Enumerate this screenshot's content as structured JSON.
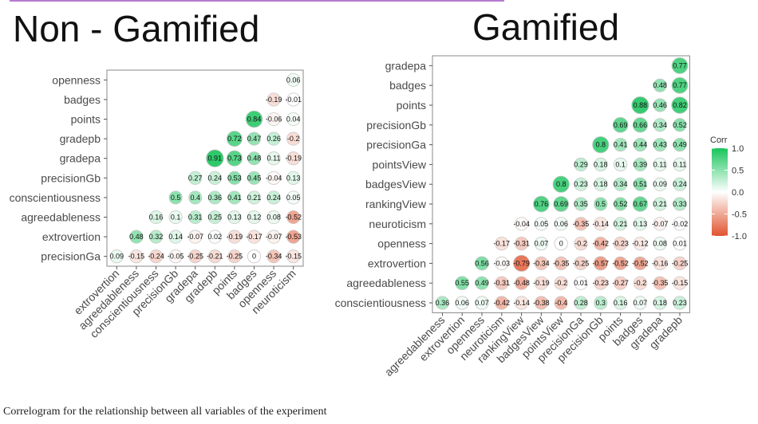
{
  "caption": "Correlogram for the relationship between all variables of the experiment",
  "legend": {
    "title": "Corr",
    "ticks": [
      "1.0",
      "0.5",
      "0.0",
      "-0.5",
      "-1.0"
    ],
    "colors": {
      "positive": "#19c45c",
      "neutral": "#ffffff",
      "negative": "#e0532e"
    }
  },
  "chart_data": [
    {
      "type": "heatmap",
      "title": "Non - Gamified",
      "rows": [
        "openness",
        "badges",
        "points",
        "gradepb",
        "gradepa",
        "precisionGb",
        "conscientiousness",
        "agreedableness",
        "extrovertion",
        "precisionGa"
      ],
      "columns": [
        "extrovertion",
        "agreedableness",
        "conscientiousness",
        "precisionGb",
        "gradepa",
        "gradepb",
        "points",
        "badges",
        "openness",
        "neuroticism"
      ],
      "values": [
        [
          null,
          null,
          null,
          null,
          null,
          null,
          null,
          null,
          null,
          0.06
        ],
        [
          null,
          null,
          null,
          null,
          null,
          null,
          null,
          null,
          -0.19,
          -0.01
        ],
        [
          null,
          null,
          null,
          null,
          null,
          null,
          null,
          0.84,
          -0.06,
          0.04
        ],
        [
          null,
          null,
          null,
          null,
          null,
          null,
          0.72,
          0.47,
          0.26,
          -0.2
        ],
        [
          null,
          null,
          null,
          null,
          null,
          0.91,
          0.73,
          0.48,
          0.11,
          -0.19
        ],
        [
          null,
          null,
          null,
          null,
          0.27,
          0.24,
          0.53,
          0.45,
          -0.04,
          0.13
        ],
        [
          null,
          null,
          null,
          0.5,
          0.4,
          0.36,
          0.41,
          0.21,
          0.24,
          0.05
        ],
        [
          null,
          null,
          0.16,
          0.1,
          0.31,
          0.25,
          0.13,
          0.12,
          0.08,
          -0.52
        ],
        [
          null,
          0.48,
          0.32,
          0.14,
          -0.07,
          0.02,
          -0.19,
          -0.17,
          -0.07,
          -0.53
        ],
        [
          0.09,
          -0.15,
          -0.24,
          -0.05,
          -0.25,
          -0.21,
          -0.25,
          0,
          -0.34,
          -0.15
        ]
      ],
      "value_labels": [
        [
          null,
          null,
          null,
          null,
          null,
          null,
          null,
          null,
          null,
          "0.06"
        ],
        [
          null,
          null,
          null,
          null,
          null,
          null,
          null,
          null,
          "-0.19",
          "-0.01"
        ],
        [
          null,
          null,
          null,
          null,
          null,
          null,
          null,
          "0.84",
          "-0.06",
          "0.04"
        ],
        [
          null,
          null,
          null,
          null,
          null,
          null,
          "0.72",
          "0.47",
          "0.26",
          "-0.2"
        ],
        [
          null,
          null,
          null,
          null,
          null,
          "0.91",
          "0.73",
          "0.48",
          "0.11",
          "-0.19"
        ],
        [
          null,
          null,
          null,
          null,
          "0.27",
          "0.24",
          "0.53",
          "0.45",
          "-0.04",
          "0.13"
        ],
        [
          null,
          null,
          null,
          "0.5",
          "0.4",
          "0.36",
          "0.41",
          "0.21",
          "0.24",
          "0.05"
        ],
        [
          null,
          null,
          "0.16",
          "0.1",
          "0.31",
          "0.25",
          "0.13",
          "0.12",
          "0.08",
          "-0.52"
        ],
        [
          null,
          "0.48",
          "0.32",
          "0.14",
          "-0.07",
          "0.02",
          "-0.19",
          "-0.17",
          "-0.07",
          "-0.53"
        ],
        [
          "0.09",
          "-0.15",
          "-0.24",
          "-0.05",
          "-0.25",
          "-0.21",
          "-0.25",
          "0",
          "-0.34",
          "-0.15"
        ]
      ]
    },
    {
      "type": "heatmap",
      "title": "Gamified",
      "rows": [
        "gradepa",
        "badges",
        "points",
        "precisionGb",
        "precisionGa",
        "pointsView",
        "badgesView",
        "rankingView",
        "neuroticism",
        "openness",
        "extrovertion",
        "agreedableness",
        "conscientiousness"
      ],
      "columns": [
        "agreedableness",
        "extrovertion",
        "openness",
        "neuroticism",
        "rankingView",
        "badgesView",
        "pointsView",
        "precisionGa",
        "precisionGb",
        "points",
        "badges",
        "gradepa",
        "gradepb"
      ],
      "values": [
        [
          null,
          null,
          null,
          null,
          null,
          null,
          null,
          null,
          null,
          null,
          null,
          null,
          0.77
        ],
        [
          null,
          null,
          null,
          null,
          null,
          null,
          null,
          null,
          null,
          null,
          null,
          0.48,
          0.77
        ],
        [
          null,
          null,
          null,
          null,
          null,
          null,
          null,
          null,
          null,
          null,
          0.88,
          0.46,
          0.82
        ],
        [
          null,
          null,
          null,
          null,
          null,
          null,
          null,
          null,
          null,
          0.69,
          0.66,
          0.34,
          0.52
        ],
        [
          null,
          null,
          null,
          null,
          null,
          null,
          null,
          null,
          0.8,
          0.41,
          0.44,
          0.43,
          0.49
        ],
        [
          null,
          null,
          null,
          null,
          null,
          null,
          null,
          0.29,
          0.18,
          0.1,
          0.39,
          0.11,
          0.11
        ],
        [
          null,
          null,
          null,
          null,
          null,
          null,
          0.8,
          0.23,
          0.18,
          0.34,
          0.51,
          0.09,
          0.24
        ],
        [
          null,
          null,
          null,
          null,
          null,
          0.76,
          0.69,
          0.35,
          0.5,
          0.52,
          0.67,
          0.21,
          0.33
        ],
        [
          null,
          null,
          null,
          null,
          -0.04,
          0.05,
          0.06,
          -0.35,
          -0.14,
          0.21,
          0.13,
          -0.07,
          -0.02
        ],
        [
          null,
          null,
          null,
          -0.17,
          -0.31,
          0.07,
          0,
          -0.2,
          -0.42,
          -0.23,
          -0.12,
          0.08,
          0.01
        ],
        [
          null,
          null,
          0.56,
          -0.03,
          -0.79,
          -0.34,
          -0.35,
          -0.25,
          -0.57,
          -0.52,
          -0.52,
          -0.16,
          -0.25
        ],
        [
          null,
          0.55,
          0.49,
          -0.31,
          -0.48,
          -0.19,
          -0.2,
          0.01,
          -0.23,
          -0.27,
          -0.2,
          -0.35,
          -0.15
        ],
        [
          0.36,
          0.06,
          0.07,
          -0.42,
          -0.14,
          -0.38,
          -0.4,
          0.28,
          0.3,
          0.16,
          0.07,
          0.18,
          0.23
        ]
      ],
      "value_labels": [
        [
          null,
          null,
          null,
          null,
          null,
          null,
          null,
          null,
          null,
          null,
          null,
          null,
          "0.77"
        ],
        [
          null,
          null,
          null,
          null,
          null,
          null,
          null,
          null,
          null,
          null,
          null,
          "0.48",
          "0.77"
        ],
        [
          null,
          null,
          null,
          null,
          null,
          null,
          null,
          null,
          null,
          null,
          "0.88",
          "0.46",
          "0.82"
        ],
        [
          null,
          null,
          null,
          null,
          null,
          null,
          null,
          null,
          null,
          "0.69",
          "0.66",
          "0.34",
          "0.52"
        ],
        [
          null,
          null,
          null,
          null,
          null,
          null,
          null,
          null,
          "0.8",
          "0.41",
          "0.44",
          "0.43",
          "0.49"
        ],
        [
          null,
          null,
          null,
          null,
          null,
          null,
          null,
          "0.29",
          "0.18",
          "0.1",
          "0.39",
          "0.11",
          "0.11"
        ],
        [
          null,
          null,
          null,
          null,
          null,
          null,
          "0.8",
          "0.23",
          "0.18",
          "0.34",
          "0.51",
          "0.09",
          "0.24"
        ],
        [
          null,
          null,
          null,
          null,
          null,
          "0.76",
          "0.69",
          "0.35",
          "0.5",
          "0.52",
          "0.67",
          "0.21",
          "0.33"
        ],
        [
          null,
          null,
          null,
          null,
          "-0.04",
          "0.05",
          "0.06",
          "-0.35",
          "-0.14",
          "0.21",
          "0.13",
          "-0.07",
          "-0.02"
        ],
        [
          null,
          null,
          null,
          "-0.17",
          "-0.31",
          "0.07",
          "0",
          "-0.2",
          "-0.42",
          "-0.23",
          "-0.12",
          "0.08",
          "0.01"
        ],
        [
          null,
          null,
          "0.56",
          "-0.03",
          "-0.79",
          "-0.34",
          "-0.35",
          "-0.25",
          "-0.57",
          "-0.52",
          "-0.52",
          "-0.16",
          "-0.25"
        ],
        [
          null,
          "0.55",
          "0.49",
          "-0.31",
          "-0.48",
          "-0.19",
          "-0.2",
          "0.01",
          "-0.23",
          "-0.27",
          "-0.2",
          "-0.35",
          "-0.15"
        ],
        [
          "0.36",
          "0.06",
          "0.07",
          "-0.42",
          "-0.14",
          "-0.38",
          "-0.4",
          "0.28",
          "0.3",
          "0.16",
          "0.07",
          "0.18",
          "0.23"
        ]
      ]
    }
  ]
}
